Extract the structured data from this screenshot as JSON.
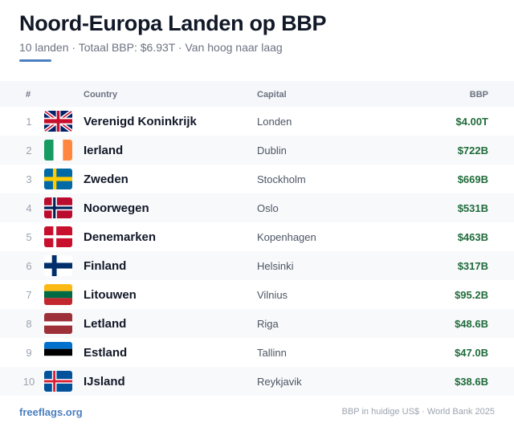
{
  "header": {
    "title": "Noord-Europa Landen op BBP",
    "subtitle": "10 landen · Totaal BBP: $6.93T · Van hoog naar laag"
  },
  "table": {
    "columns": {
      "rank": "#",
      "country": "Country",
      "capital": "Capital",
      "gdp": "BBP"
    },
    "rows": [
      {
        "rank": "1",
        "flag": "uk-flag-icon",
        "country": "Verenigd Koninkrijk",
        "capital": "Londen",
        "gdp": "$4.00T"
      },
      {
        "rank": "2",
        "flag": "ireland-flag-icon",
        "country": "Ierland",
        "capital": "Dublin",
        "gdp": "$722B"
      },
      {
        "rank": "3",
        "flag": "sweden-flag-icon",
        "country": "Zweden",
        "capital": "Stockholm",
        "gdp": "$669B"
      },
      {
        "rank": "4",
        "flag": "norway-flag-icon",
        "country": "Noorwegen",
        "capital": "Oslo",
        "gdp": "$531B"
      },
      {
        "rank": "5",
        "flag": "denmark-flag-icon",
        "country": "Denemarken",
        "capital": "Kopenhagen",
        "gdp": "$463B"
      },
      {
        "rank": "6",
        "flag": "finland-flag-icon",
        "country": "Finland",
        "capital": "Helsinki",
        "gdp": "$317B"
      },
      {
        "rank": "7",
        "flag": "lithuania-flag-icon",
        "country": "Litouwen",
        "capital": "Vilnius",
        "gdp": "$95.2B"
      },
      {
        "rank": "8",
        "flag": "latvia-flag-icon",
        "country": "Letland",
        "capital": "Riga",
        "gdp": "$48.6B"
      },
      {
        "rank": "9",
        "flag": "estonia-flag-icon",
        "country": "Estland",
        "capital": "Tallinn",
        "gdp": "$47.0B"
      },
      {
        "rank": "10",
        "flag": "iceland-flag-icon",
        "country": "IJsland",
        "capital": "Reykjavik",
        "gdp": "$38.6B"
      }
    ]
  },
  "footer": {
    "brand": "freeflags.org",
    "source": "BBP in huidige US$ · World Bank 2025"
  },
  "colors": {
    "accent": "#4a7fc1",
    "gdp_text": "#1f6b3a",
    "row_alt": "#f8f9fb",
    "header_bg": "#f5f7fa"
  }
}
